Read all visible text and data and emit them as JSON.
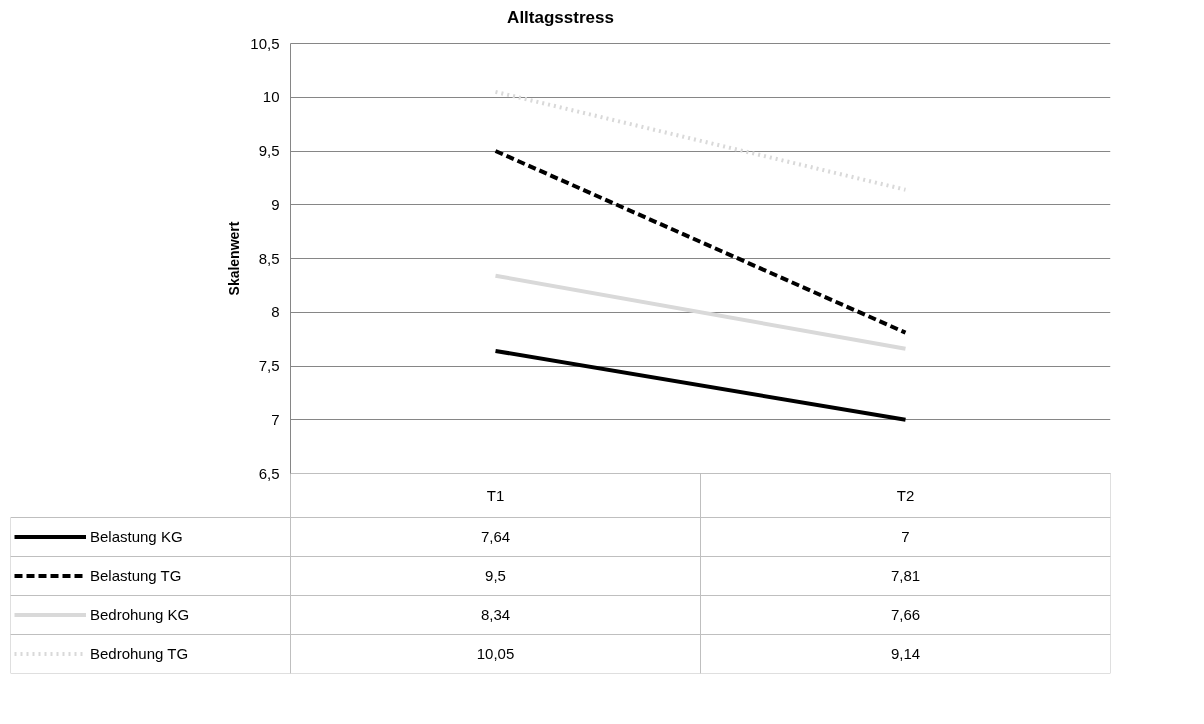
{
  "chart_data": {
    "type": "line",
    "title": "Alltagsstress",
    "ylabel": "Skalenwert",
    "categories": [
      "T1",
      "T2"
    ],
    "ylim": [
      6.5,
      10.5
    ],
    "yticks": [
      {
        "value": 6.5,
        "label": "6,5"
      },
      {
        "value": 7,
        "label": "7"
      },
      {
        "value": 7.5,
        "label": "7,5"
      },
      {
        "value": 8,
        "label": "8"
      },
      {
        "value": 8.5,
        "label": "8,5"
      },
      {
        "value": 9,
        "label": "9"
      },
      {
        "value": 9.5,
        "label": "9,5"
      },
      {
        "value": 10,
        "label": "10"
      },
      {
        "value": 10.5,
        "label": "10,5"
      }
    ],
    "grid": "y",
    "legend": "bottom",
    "marker": "none",
    "series": [
      {
        "name": "Belastung KG",
        "color": "#000000",
        "line_style": "solid",
        "values": [
          7.64,
          7
        ],
        "value_labels": [
          "7,64",
          "7"
        ]
      },
      {
        "name": "Belastung TG",
        "color": "#000000",
        "line_style": "dashed",
        "values": [
          9.5,
          7.81
        ],
        "value_labels": [
          "9,5",
          "7,81"
        ]
      },
      {
        "name": "Bedrohung KG",
        "color": "#d9d9d9",
        "line_style": "solid",
        "values": [
          8.34,
          7.66
        ],
        "value_labels": [
          "8,34",
          "7,66"
        ]
      },
      {
        "name": "Bedrohung TG",
        "color": "#d9d9d9",
        "line_style": "dotted",
        "values": [
          10.05,
          9.14
        ],
        "value_labels": [
          "10,05",
          "9,14"
        ]
      }
    ]
  }
}
